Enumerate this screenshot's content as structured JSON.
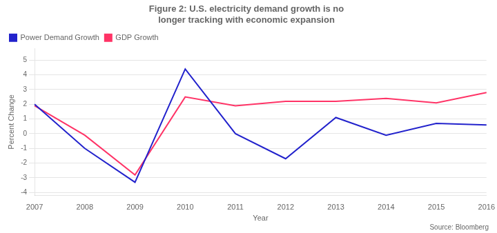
{
  "chart_data": {
    "type": "line",
    "title": "Figure 2: U.S. electricity demand growth is no\nlonger tracking with economic expansion",
    "x_label": "Year",
    "y_label": "Percent Change",
    "categories": [
      "2007",
      "2008",
      "2009",
      "2010",
      "2011",
      "2012",
      "2013",
      "2014",
      "2015",
      "2016"
    ],
    "series": [
      {
        "name": "Power Demand Growth",
        "color": "#2222cc",
        "values": [
          2.0,
          -1.0,
          -3.3,
          4.4,
          0.0,
          -1.7,
          1.1,
          -0.1,
          0.7,
          0.6
        ]
      },
      {
        "name": "GDP Growth",
        "color": "#ff3366",
        "values": [
          1.9,
          -0.1,
          -2.8,
          2.5,
          1.9,
          2.2,
          2.2,
          2.4,
          2.1,
          2.8
        ]
      }
    ],
    "ylim": [
      -4.2,
      5.8
    ],
    "yticks": [
      -4,
      -3,
      -2,
      -1,
      0,
      1,
      2,
      3,
      4,
      5
    ],
    "grid": "y",
    "legend": "top-left",
    "annotations": [
      "Source: Bloomberg"
    ]
  }
}
